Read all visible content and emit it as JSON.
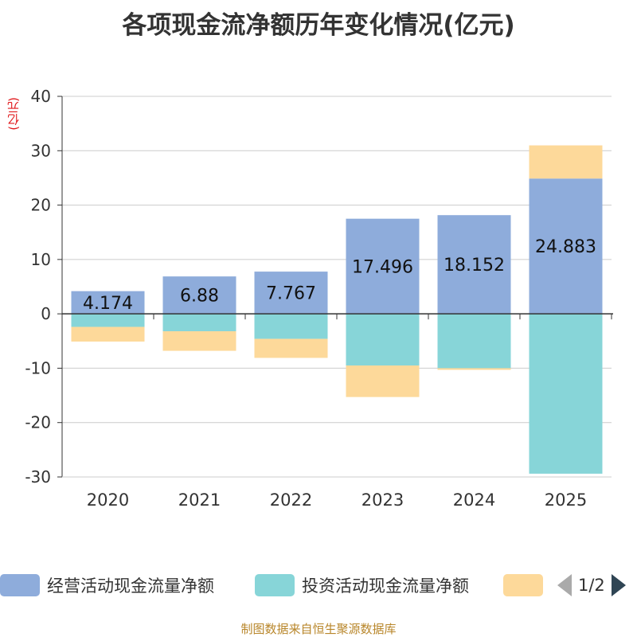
{
  "footer": "制图数据来自恒生聚源数据库",
  "pager": {
    "text": "1/2"
  },
  "colors": {
    "operating": "#8eacdb",
    "investing": "#87d5d8",
    "financing": "#fdd99a",
    "axis": "#333333",
    "grid": "#cccccc"
  },
  "chart_data": {
    "type": "bar",
    "stacked": true,
    "title": "各项现金流净额历年变化情况(亿元)",
    "ylabel": "(亿元)",
    "xlabel": "",
    "ylim": [
      -30,
      40
    ],
    "yticks": [
      -30,
      -20,
      -10,
      0,
      10,
      20,
      30,
      40
    ],
    "grid": true,
    "categories": [
      "2020",
      "2021",
      "2022",
      "2023",
      "2024",
      "2025"
    ],
    "series": [
      {
        "name": "经营活动现金流量净额",
        "values": [
          4.174,
          6.88,
          7.767,
          17.496,
          18.152,
          24.883
        ],
        "show_labels": true
      },
      {
        "name": "投资活动现金流量净额",
        "values": [
          -2.4,
          -3.2,
          -4.6,
          -9.5,
          -10.0,
          -29.4
        ],
        "show_labels": false
      },
      {
        "name": "",
        "values": [
          -2.7,
          -3.6,
          -3.5,
          -5.8,
          -0.3,
          6.1
        ],
        "show_labels": false
      }
    ],
    "legend_position": "bottom"
  }
}
